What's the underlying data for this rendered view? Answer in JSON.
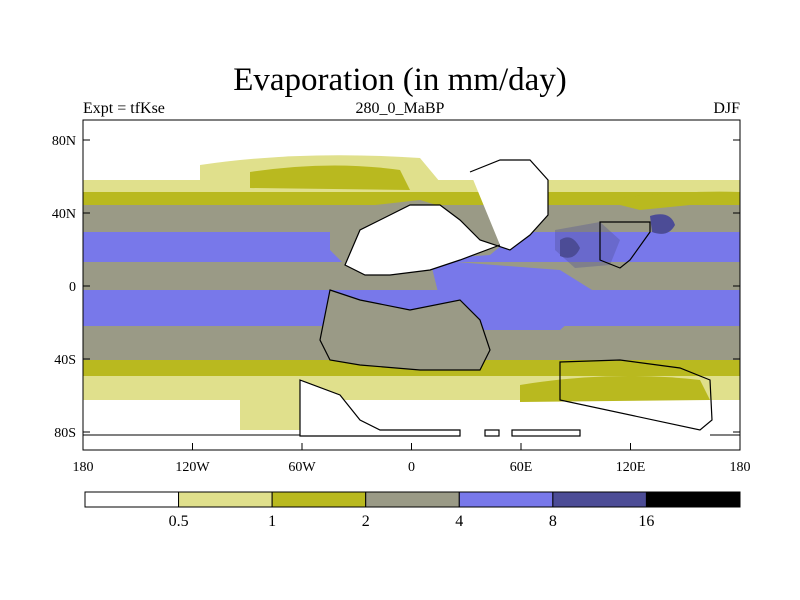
{
  "title": "Evaporation (in mm/day)",
  "subtitle_left": "Expt = tfKse",
  "subtitle_center": "280_0_MaBP",
  "subtitle_right": "DJF",
  "lat_labels": [
    "80N",
    "40N",
    "0",
    "40S",
    "80S"
  ],
  "lon_labels": [
    "180",
    "120W",
    "60W",
    "0",
    "60E",
    "120E",
    "180"
  ],
  "colorbar": {
    "labels": [
      "0.5",
      "1",
      "2",
      "4",
      "8",
      "16"
    ],
    "colors": [
      "#ffffff",
      "#e0e08c",
      "#b9b91f",
      "#9a9a86",
      "#7878ea",
      "#4c4c96",
      "#000000"
    ]
  },
  "chart_data": {
    "type": "heatmap",
    "variable": "Evaporation",
    "units": "mm/day",
    "experiment": "tfKse",
    "period": "280_0_MaBP",
    "season": "DJF",
    "x_range": [
      -180,
      180
    ],
    "y_range": [
      -90,
      90
    ],
    "levels": [
      0.5,
      1,
      2,
      4,
      8,
      16
    ]
  }
}
